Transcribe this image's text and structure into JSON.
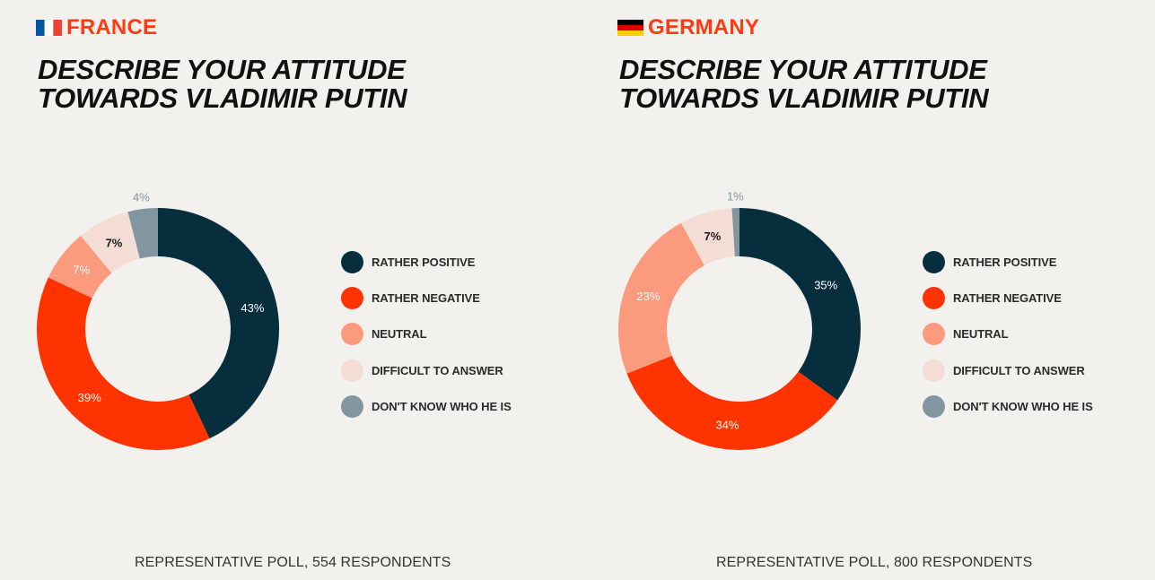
{
  "colors": {
    "rather_positive": "#062e3d",
    "rather_negative": "#ff3300",
    "neutral": "#fc9a7d",
    "difficult": "#f3ddd4",
    "dont_know": "#8296a0",
    "accent": "#ff3a12"
  },
  "legend_labels": [
    "RATHER POSITIVE",
    "RATHER NEGATIVE",
    "NEUTRAL",
    "DIFFICULT TO ANSWER",
    "DON'T KNOW WHO HE IS"
  ],
  "panels": [
    {
      "country": "FRANCE",
      "flag": "france-flag",
      "title_line1": "DESCRIBE YOUR ATTITUDE",
      "title_line2": "TOWARDS VLADIMIR PUTIN",
      "footer": "REPRESENTATIVE POLL, 554 RESPONDENTS"
    },
    {
      "country": "GERMANY",
      "flag": "germany-flag",
      "title_line1": "DESCRIBE YOUR ATTITUDE",
      "title_line2": "TOWARDS VLADIMIR PUTIN",
      "footer": "REPRESENTATIVE POLL, 800 RESPONDENTS"
    }
  ],
  "chart_data": [
    {
      "type": "pie",
      "title": "DESCRIBE YOUR ATTITUDE TOWARDS VLADIMIR PUTIN",
      "subtitle": "FRANCE",
      "categories": [
        "RATHER POSITIVE",
        "RATHER NEGATIVE",
        "NEUTRAL",
        "DIFFICULT TO ANSWER",
        "DON'T KNOW WHO HE IS"
      ],
      "values": [
        43,
        39,
        7,
        7,
        4
      ],
      "labels": [
        "43%",
        "39%",
        "7%",
        "7%",
        "4%"
      ],
      "legend": "right"
    },
    {
      "type": "pie",
      "title": "DESCRIBE YOUR ATTITUDE TOWARDS VLADIMIR PUTIN",
      "subtitle": "GERMANY",
      "categories": [
        "RATHER POSITIVE",
        "RATHER NEGATIVE",
        "NEUTRAL",
        "DIFFICULT TO ANSWER",
        "DON'T KNOW WHO HE IS"
      ],
      "values": [
        35,
        34,
        23,
        7,
        1
      ],
      "labels": [
        "35%",
        "34%",
        "23%",
        "7%",
        "1%"
      ],
      "legend": "right"
    }
  ]
}
